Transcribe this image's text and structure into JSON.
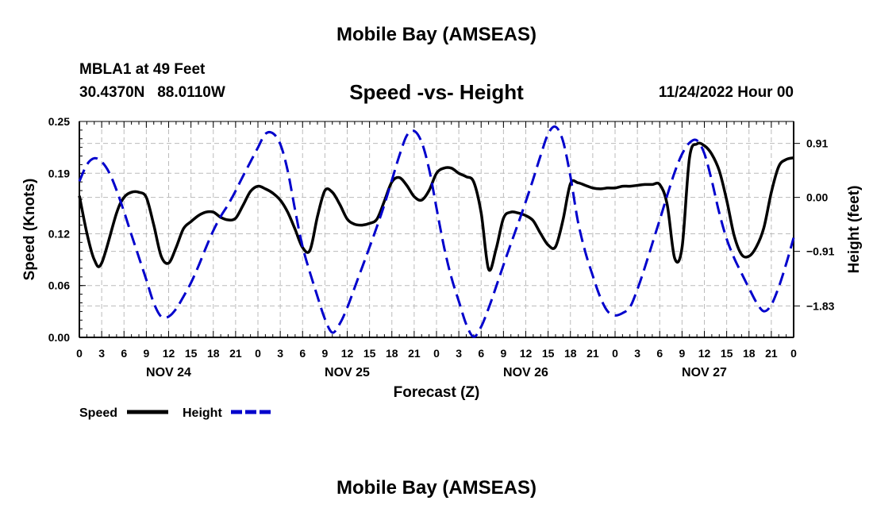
{
  "page_title": "Mobile Bay (AMSEAS)",
  "footer_title": "Mobile Bay (AMSEAS)",
  "station": {
    "name_depth": "MBLA1 at 49 Feet",
    "coordinates": "30.4370N   88.0110W"
  },
  "forecast_time": "11/24/2022 Hour 00",
  "legend": {
    "speed_label": "Speed",
    "height_label": "Height"
  },
  "colors": {
    "speed": "#000000",
    "height": "#0000cc",
    "grid": "#bbbbbb"
  },
  "chart_data": {
    "type": "line",
    "title": "Speed -vs- Height",
    "xlabel": "Forecast (Z)",
    "ylabel_left": "Speed (Knots)",
    "ylabel_right": "Height (feet)",
    "x_range_hours": [
      0,
      96
    ],
    "ylim_left": [
      0,
      0.25
    ],
    "ylim_right": [
      -2.36,
      1.28
    ],
    "left_ticks": [
      0.25,
      0.19,
      0.12,
      0.06,
      0.0
    ],
    "left_tick_labels": [
      "0.25",
      "0.19",
      "0.12",
      "0.06",
      "0.00"
    ],
    "right_ticks": [
      0.91,
      0.0,
      -0.91,
      -1.83
    ],
    "right_tick_labels": [
      "0.91",
      "0.00",
      "−0.91",
      "−1.83"
    ],
    "x_tick_hours": [
      0,
      3,
      6,
      9,
      12,
      15,
      18,
      21,
      24,
      27,
      30,
      33,
      36,
      39,
      42,
      45,
      48,
      51,
      54,
      57,
      60,
      63,
      66,
      69,
      72,
      75,
      78,
      81,
      84,
      87,
      90,
      93,
      96
    ],
    "x_tick_labels": [
      "0",
      "3",
      "6",
      "9",
      "12",
      "15",
      "18",
      "21",
      "0",
      "3",
      "6",
      "9",
      "12",
      "15",
      "18",
      "21",
      "0",
      "3",
      "6",
      "9",
      "12",
      "15",
      "18",
      "21",
      "0",
      "3",
      "6",
      "9",
      "12",
      "15",
      "18",
      "21",
      "0"
    ],
    "day_labels": [
      {
        "hour": 12,
        "label": "NOV 24"
      },
      {
        "hour": 36,
        "label": "NOV 25"
      },
      {
        "hour": 60,
        "label": "NOV 26"
      },
      {
        "hour": 84,
        "label": "NOV 27"
      }
    ],
    "grid": true,
    "legend_placement": "bottom-left",
    "series": [
      {
        "name": "Speed",
        "axis": "left",
        "style": "solid",
        "x": [
          0,
          1,
          2,
          3,
          5,
          6,
          7,
          8,
          9,
          10,
          11,
          12,
          13,
          14,
          15,
          16,
          17,
          18,
          19,
          20,
          21,
          22,
          23,
          24,
          25,
          26,
          27,
          28,
          29,
          30,
          31,
          32,
          33,
          34,
          35,
          36,
          37,
          38,
          39,
          40,
          41,
          42,
          43,
          44,
          45,
          46,
          47,
          48,
          49,
          50,
          51,
          52,
          53,
          54,
          55,
          56,
          57,
          58,
          59,
          60,
          61,
          62,
          63,
          64,
          65,
          66,
          67,
          68,
          69,
          70,
          71,
          72,
          73,
          74,
          75,
          76,
          77,
          78,
          79,
          80,
          81,
          82,
          83,
          84,
          85,
          86,
          87,
          88,
          89,
          90,
          91,
          92,
          93,
          94,
          95,
          96
        ],
        "values": [
          0.164,
          0.121,
          0.09,
          0.086,
          0.144,
          0.162,
          0.168,
          0.168,
          0.162,
          0.13,
          0.094,
          0.086,
          0.104,
          0.126,
          0.134,
          0.141,
          0.145,
          0.145,
          0.139,
          0.136,
          0.138,
          0.153,
          0.169,
          0.175,
          0.172,
          0.167,
          0.159,
          0.145,
          0.125,
          0.104,
          0.101,
          0.14,
          0.17,
          0.168,
          0.154,
          0.137,
          0.131,
          0.13,
          0.132,
          0.137,
          0.158,
          0.18,
          0.185,
          0.176,
          0.163,
          0.159,
          0.17,
          0.19,
          0.196,
          0.196,
          0.19,
          0.186,
          0.18,
          0.144,
          0.079,
          0.102,
          0.138,
          0.145,
          0.144,
          0.141,
          0.135,
          0.12,
          0.107,
          0.105,
          0.136,
          0.178,
          0.179,
          0.176,
          0.173,
          0.172,
          0.173,
          0.173,
          0.175,
          0.175,
          0.176,
          0.177,
          0.177,
          0.177,
          0.154,
          0.092,
          0.104,
          0.208,
          0.224,
          0.222,
          0.212,
          0.193,
          0.159,
          0.118,
          0.096,
          0.094,
          0.105,
          0.127,
          0.168,
          0.198,
          0.206,
          0.208
        ]
      },
      {
        "name": "Height",
        "axis": "right",
        "style": "dashed",
        "x": [
          0,
          1,
          2,
          3,
          4,
          5,
          6,
          7,
          8,
          9,
          10,
          11,
          12,
          13,
          14,
          15,
          16,
          17,
          18,
          19,
          20,
          21,
          22,
          23,
          24,
          25,
          26,
          27,
          28,
          29,
          30,
          31,
          32,
          33,
          34,
          35,
          36,
          37,
          38,
          39,
          40,
          41,
          42,
          43,
          44,
          45,
          46,
          47,
          48,
          49,
          50,
          51,
          52,
          53,
          54,
          55,
          56,
          57,
          58,
          59,
          60,
          61,
          62,
          63,
          64,
          65,
          66,
          67,
          68,
          69,
          70,
          71,
          72,
          73,
          74,
          75,
          76,
          77,
          78,
          79,
          80,
          81,
          82,
          83,
          84,
          85,
          86,
          87,
          88,
          89,
          90,
          91,
          92,
          93,
          94,
          95,
          96
        ],
        "values": [
          0.27,
          0.55,
          0.66,
          0.6,
          0.42,
          0.12,
          -0.24,
          -0.63,
          -1.01,
          -1.39,
          -1.78,
          -2.01,
          -2.01,
          -1.88,
          -1.67,
          -1.44,
          -1.16,
          -0.85,
          -0.56,
          -0.32,
          -0.12,
          0.11,
          0.36,
          0.6,
          0.84,
          1.07,
          1.08,
          0.9,
          0.45,
          -0.22,
          -0.83,
          -1.27,
          -1.67,
          -2.05,
          -2.28,
          -2.13,
          -1.86,
          -1.52,
          -1.18,
          -0.84,
          -0.49,
          -0.12,
          0.29,
          0.7,
          1.04,
          1.12,
          0.93,
          0.48,
          -0.18,
          -0.83,
          -1.35,
          -1.75,
          -2.14,
          -2.35,
          -2.18,
          -1.87,
          -1.51,
          -1.14,
          -0.78,
          -0.43,
          -0.07,
          0.31,
          0.71,
          1.07,
          1.19,
          0.95,
          0.35,
          -0.4,
          -0.92,
          -1.32,
          -1.68,
          -1.92,
          -1.99,
          -1.95,
          -1.85,
          -1.55,
          -1.18,
          -0.78,
          -0.38,
          0.03,
          0.42,
          0.73,
          0.92,
          0.96,
          0.74,
          0.28,
          -0.26,
          -0.7,
          -1.02,
          -1.28,
          -1.53,
          -1.77,
          -1.92,
          -1.81,
          -1.51,
          -1.12,
          -0.68
        ]
      }
    ]
  }
}
